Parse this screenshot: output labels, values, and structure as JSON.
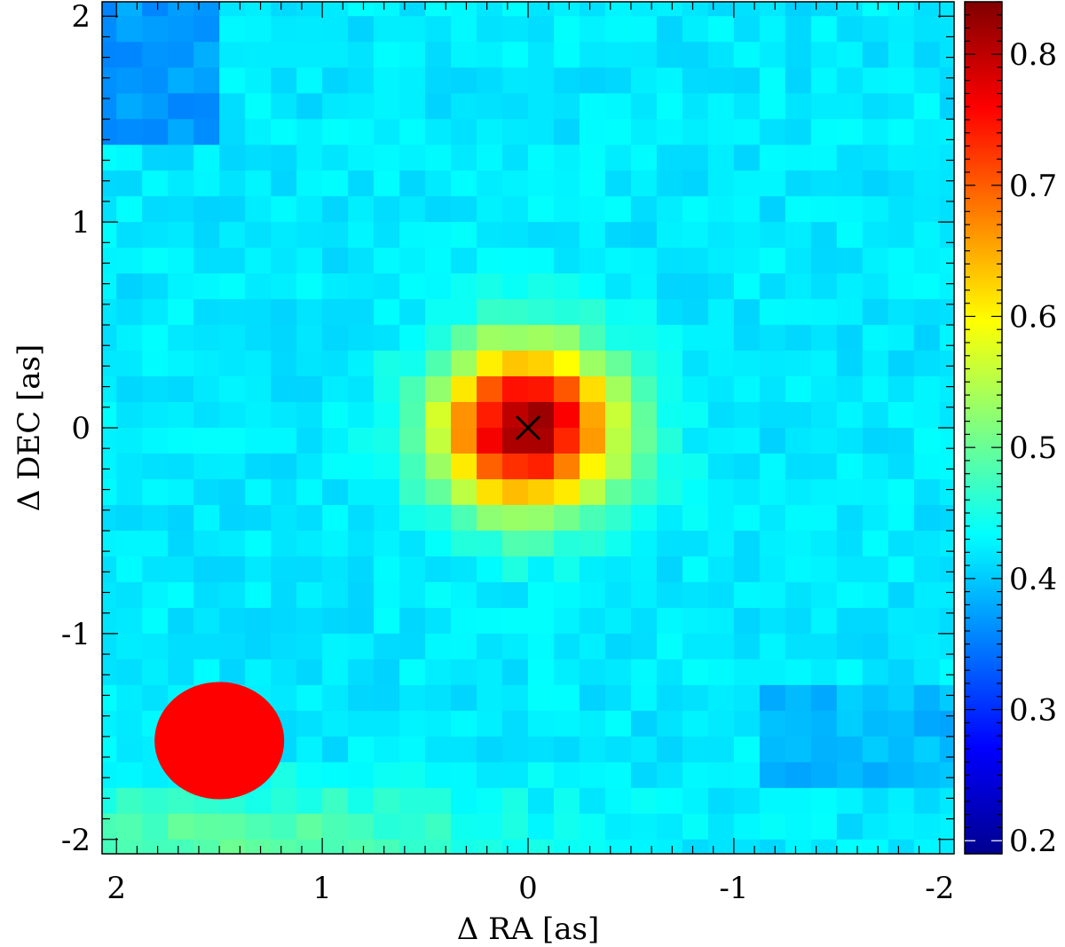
{
  "chart_data": {
    "type": "heatmap",
    "title": "",
    "xlabel": "Δ RA [as]",
    "ylabel": "Δ DEC [as]",
    "x_reversed": true,
    "xlim": [
      2.07,
      -2.07
    ],
    "ylim": [
      -2.07,
      2.07
    ],
    "x_ticks": [
      2,
      1,
      0,
      -1,
      -2
    ],
    "x_tick_labels": [
      "2",
      "1",
      "0",
      "-1",
      "-2"
    ],
    "y_ticks": [
      2,
      1,
      0,
      -1,
      -2
    ],
    "y_tick_labels": [
      "2",
      "1",
      "0",
      "-1",
      "-2"
    ],
    "grid": false,
    "pixel_size_as": 0.125,
    "colormap": "jet",
    "colorbar": {
      "range": [
        0.19,
        0.84
      ],
      "ticks": [
        0.2,
        0.3,
        0.4,
        0.5,
        0.6,
        0.7,
        0.8
      ],
      "tick_labels": [
        "0.2",
        "0.3",
        "0.4",
        "0.5",
        "0.6",
        "0.7",
        "0.8"
      ]
    },
    "peak": {
      "ra": 0,
      "dec": 0,
      "value": 0.83,
      "sigma_ra": 0.3,
      "sigma_dec": 0.28
    },
    "background_level": 0.42,
    "marker": {
      "symbol": "×",
      "ra": 0,
      "dec": 0,
      "color": "#000000"
    },
    "beam": {
      "ra": 1.5,
      "dec": -1.52,
      "major_ra": 0.63,
      "minor_dec": 0.57,
      "color": "#ff0000"
    }
  }
}
